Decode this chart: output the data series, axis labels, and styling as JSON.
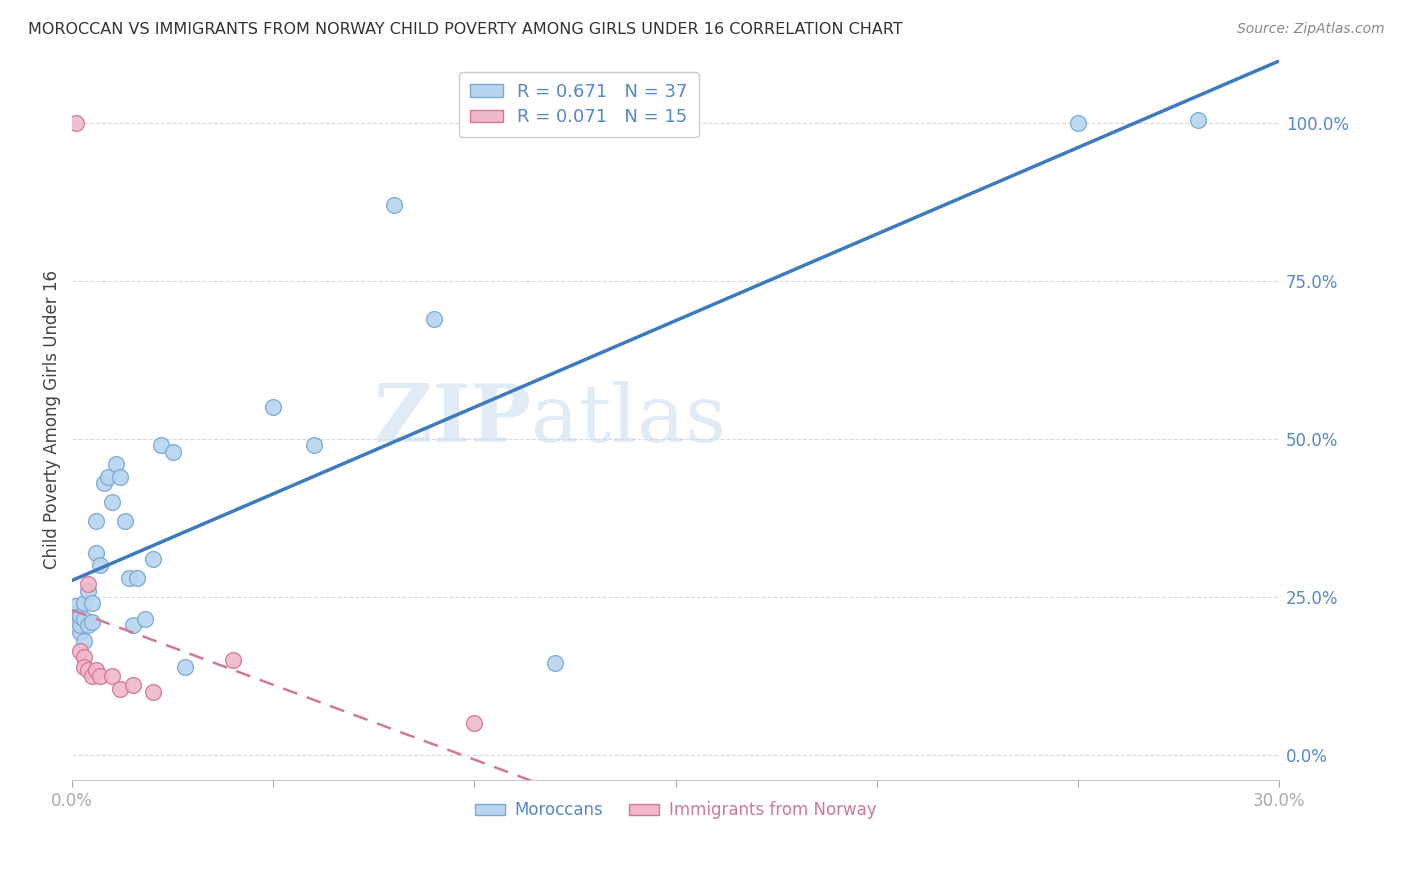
{
  "title": "MOROCCAN VS IMMIGRANTS FROM NORWAY CHILD POVERTY AMONG GIRLS UNDER 16 CORRELATION CHART",
  "source": "Source: ZipAtlas.com",
  "ylabel": "Child Poverty Among Girls Under 16",
  "xlim": [
    0.0,
    0.3
  ],
  "ylim": [
    -0.04,
    1.1
  ],
  "yticks": [
    0.0,
    0.25,
    0.5,
    0.75,
    1.0
  ],
  "ytick_labels": [
    "0.0%",
    "25.0%",
    "50.0%",
    "75.0%",
    "100.0%"
  ],
  "xticks": [
    0.0,
    0.05,
    0.1,
    0.15,
    0.2,
    0.25,
    0.3
  ],
  "moroccan_color": "#b8d4f0",
  "morocco_edge": "#7aaad0",
  "norway_color": "#f0b8c8",
  "norway_edge": "#d07898",
  "trendline_moroccan_color": "#3d7abf",
  "trendline_norway_color": "#d07898",
  "watermark_zip": "ZIP",
  "watermark_atlas": "atlas",
  "legend_r_moroccan": "R = 0.671",
  "legend_n_moroccan": "N = 37",
  "legend_r_norway": "R = 0.071",
  "legend_n_norway": "N = 15",
  "moroccan_x": [
    0.001,
    0.001,
    0.001,
    0.002,
    0.002,
    0.002,
    0.003,
    0.003,
    0.003,
    0.004,
    0.004,
    0.005,
    0.005,
    0.006,
    0.006,
    0.007,
    0.008,
    0.009,
    0.01,
    0.011,
    0.012,
    0.013,
    0.014,
    0.015,
    0.016,
    0.018,
    0.02,
    0.022,
    0.025,
    0.028,
    0.05,
    0.06,
    0.08,
    0.09,
    0.12,
    0.25,
    0.28
  ],
  "moroccan_y": [
    0.215,
    0.225,
    0.235,
    0.195,
    0.205,
    0.22,
    0.18,
    0.215,
    0.24,
    0.205,
    0.26,
    0.21,
    0.24,
    0.32,
    0.37,
    0.3,
    0.43,
    0.44,
    0.4,
    0.46,
    0.44,
    0.37,
    0.28,
    0.205,
    0.28,
    0.215,
    0.31,
    0.49,
    0.48,
    0.14,
    0.55,
    0.49,
    0.87,
    0.69,
    0.145,
    1.0,
    1.005
  ],
  "norway_x": [
    0.001,
    0.002,
    0.003,
    0.003,
    0.004,
    0.004,
    0.005,
    0.006,
    0.007,
    0.01,
    0.012,
    0.015,
    0.02,
    0.04,
    0.1
  ],
  "norway_y": [
    1.0,
    0.165,
    0.155,
    0.14,
    0.135,
    0.27,
    0.125,
    0.135,
    0.125,
    0.125,
    0.105,
    0.11,
    0.1,
    0.15,
    0.05
  ],
  "background_color": "#ffffff",
  "grid_color": "#d8d8e8",
  "axis_color": "#5588cc",
  "title_color": "#333333"
}
